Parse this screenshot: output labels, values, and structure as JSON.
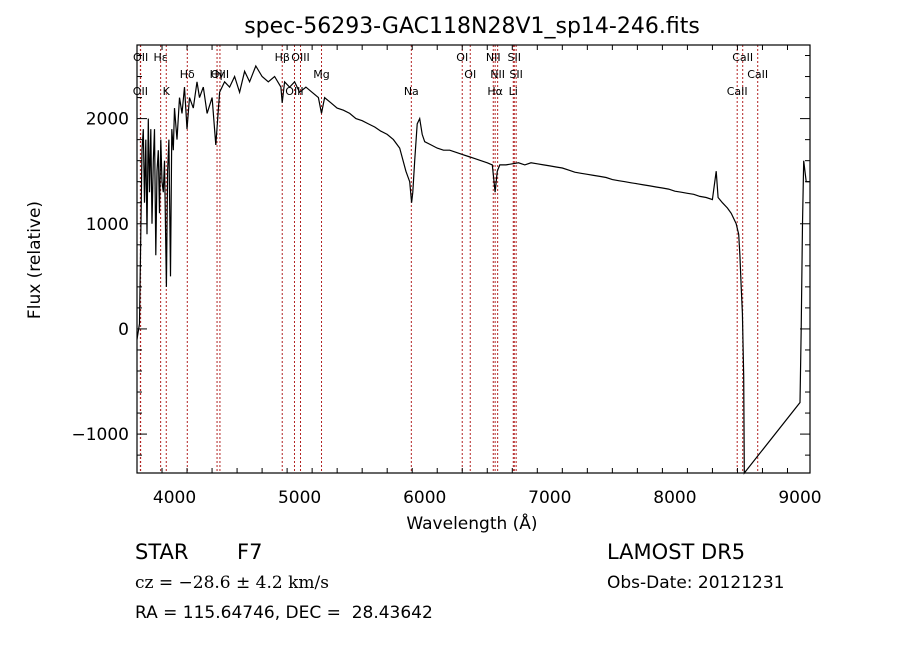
{
  "chart_data": {
    "type": "line",
    "title": "spec-56293-GAC118N28V1_sp14-246.fits",
    "xlabel": "Wavelength (Å)",
    "ylabel": "Flux (relative)",
    "xlim": [
      3700,
      9080
    ],
    "ylim": [
      -1370,
      2700
    ],
    "xticks": [
      4000,
      5000,
      6000,
      7000,
      8000,
      9000
    ],
    "yticks": [
      -1000,
      0,
      1000,
      2000
    ],
    "xtick_labels": [
      "4000",
      "5000",
      "6000",
      "7000",
      "8000",
      "9000"
    ],
    "ytick_labels": [
      "−1000",
      "0",
      "1000",
      "2000"
    ],
    "grid": false,
    "line_color": "#000000",
    "marker_color": "#b22222",
    "series": [
      {
        "points": [
          [
            3700,
            -100
          ],
          [
            3720,
            50
          ],
          [
            3740,
            1700
          ],
          [
            3750,
            1900
          ],
          [
            3760,
            1200
          ],
          [
            3770,
            1800
          ],
          [
            3780,
            900
          ],
          [
            3790,
            2000
          ],
          [
            3800,
            1300
          ],
          [
            3810,
            1900
          ],
          [
            3820,
            1000
          ],
          [
            3830,
            1600
          ],
          [
            3840,
            1900
          ],
          [
            3850,
            700
          ],
          [
            3860,
            1500
          ],
          [
            3870,
            1700
          ],
          [
            3880,
            1100
          ],
          [
            3890,
            1800
          ],
          [
            3900,
            1400
          ],
          [
            3910,
            1300
          ],
          [
            3920,
            1600
          ],
          [
            3935,
            400
          ],
          [
            3945,
            1500
          ],
          [
            3955,
            1800
          ],
          [
            3968,
            500
          ],
          [
            3978,
            1900
          ],
          [
            3990,
            1700
          ],
          [
            4000,
            2100
          ],
          [
            4020,
            1800
          ],
          [
            4040,
            2200
          ],
          [
            4060,
            2050
          ],
          [
            4080,
            2300
          ],
          [
            4100,
            1900
          ],
          [
            4120,
            2200
          ],
          [
            4150,
            2100
          ],
          [
            4180,
            2350
          ],
          [
            4200,
            2200
          ],
          [
            4230,
            2300
          ],
          [
            4260,
            2050
          ],
          [
            4300,
            2200
          ],
          [
            4330,
            1750
          ],
          [
            4345,
            2000
          ],
          [
            4360,
            2250
          ],
          [
            4400,
            2350
          ],
          [
            4440,
            2300
          ],
          [
            4480,
            2400
          ],
          [
            4520,
            2250
          ],
          [
            4560,
            2450
          ],
          [
            4600,
            2350
          ],
          [
            4650,
            2500
          ],
          [
            4700,
            2400
          ],
          [
            4750,
            2350
          ],
          [
            4800,
            2400
          ],
          [
            4850,
            2300
          ],
          [
            4861,
            2150
          ],
          [
            4880,
            2350
          ],
          [
            4920,
            2300
          ],
          [
            4960,
            2350
          ],
          [
            5000,
            2250
          ],
          [
            5050,
            2300
          ],
          [
            5100,
            2250
          ],
          [
            5150,
            2200
          ],
          [
            5175,
            2050
          ],
          [
            5200,
            2200
          ],
          [
            5250,
            2150
          ],
          [
            5300,
            2100
          ],
          [
            5350,
            2080
          ],
          [
            5400,
            2050
          ],
          [
            5450,
            2000
          ],
          [
            5500,
            1980
          ],
          [
            5550,
            1950
          ],
          [
            5600,
            1920
          ],
          [
            5650,
            1880
          ],
          [
            5700,
            1850
          ],
          [
            5750,
            1800
          ],
          [
            5800,
            1720
          ],
          [
            5850,
            1500
          ],
          [
            5880,
            1400
          ],
          [
            5895,
            1200
          ],
          [
            5905,
            1300
          ],
          [
            5920,
            1600
          ],
          [
            5940,
            1950
          ],
          [
            5960,
            2000
          ],
          [
            5980,
            1850
          ],
          [
            6000,
            1780
          ],
          [
            6050,
            1750
          ],
          [
            6100,
            1720
          ],
          [
            6150,
            1700
          ],
          [
            6200,
            1700
          ],
          [
            6250,
            1680
          ],
          [
            6300,
            1660
          ],
          [
            6350,
            1640
          ],
          [
            6400,
            1620
          ],
          [
            6450,
            1600
          ],
          [
            6500,
            1580
          ],
          [
            6540,
            1560
          ],
          [
            6563,
            1300
          ],
          [
            6580,
            1500
          ],
          [
            6600,
            1560
          ],
          [
            6650,
            1560
          ],
          [
            6700,
            1570
          ],
          [
            6750,
            1580
          ],
          [
            6800,
            1560
          ],
          [
            6850,
            1580
          ],
          [
            6900,
            1570
          ],
          [
            6950,
            1560
          ],
          [
            7000,
            1550
          ],
          [
            7050,
            1540
          ],
          [
            7100,
            1530
          ],
          [
            7150,
            1510
          ],
          [
            7200,
            1490
          ],
          [
            7250,
            1480
          ],
          [
            7300,
            1470
          ],
          [
            7350,
            1460
          ],
          [
            7400,
            1450
          ],
          [
            7450,
            1440
          ],
          [
            7500,
            1420
          ],
          [
            7550,
            1410
          ],
          [
            7600,
            1400
          ],
          [
            7650,
            1390
          ],
          [
            7700,
            1380
          ],
          [
            7750,
            1370
          ],
          [
            7800,
            1360
          ],
          [
            7850,
            1350
          ],
          [
            7900,
            1340
          ],
          [
            7950,
            1330
          ],
          [
            8000,
            1310
          ],
          [
            8050,
            1300
          ],
          [
            8100,
            1290
          ],
          [
            8150,
            1280
          ],
          [
            8200,
            1260
          ],
          [
            8250,
            1250
          ],
          [
            8300,
            1230
          ],
          [
            8330,
            1500
          ],
          [
            8345,
            1250
          ],
          [
            8380,
            1200
          ],
          [
            8420,
            1150
          ],
          [
            8450,
            1100
          ],
          [
            8470,
            1050
          ],
          [
            8490,
            1000
          ],
          [
            8510,
            900
          ],
          [
            8520,
            700
          ],
          [
            8530,
            400
          ],
          [
            8540,
            150
          ],
          [
            8550,
            -450
          ],
          [
            8555,
            -1370
          ],
          [
            9000,
            -700
          ],
          [
            9010,
            0
          ],
          [
            9020,
            1000
          ],
          [
            9030,
            1600
          ],
          [
            9050,
            1400
          ],
          [
            9080,
            1400
          ]
        ]
      }
    ],
    "line_markers": [
      {
        "label": "Hβ",
        "x": 4861
      },
      {
        "label": "Hδ",
        "x": 4102
      },
      {
        "label": "K",
        "x": 3934
      },
      {
        "label": "Hε",
        "x": 3889
      },
      {
        "label": "Hγ",
        "x": 4340
      },
      {
        "label": "OII",
        "x": 3727
      },
      {
        "label": "OII",
        "x": 3729
      },
      {
        "label": "OIII",
        "x": 4363
      },
      {
        "label": "OIII",
        "x": 4959
      },
      {
        "label": "OIII",
        "x": 5007
      },
      {
        "label": "Mg",
        "x": 5175
      },
      {
        "label": "Na",
        "x": 5893
      },
      {
        "label": "OI",
        "x": 6300
      },
      {
        "label": "OI",
        "x": 6364
      },
      {
        "label": "Hα",
        "x": 6563
      },
      {
        "label": "NII",
        "x": 6548
      },
      {
        "label": "NII",
        "x": 6583
      },
      {
        "label": "Li",
        "x": 6708
      },
      {
        "label": "SII",
        "x": 6716
      },
      {
        "label": "SII",
        "x": 6731
      },
      {
        "label": "CaII",
        "x": 8498
      },
      {
        "label": "CaII",
        "x": 8542
      },
      {
        "label": "CaII",
        "x": 8662
      }
    ]
  },
  "info": {
    "class_label": "STAR",
    "subclass": "F7",
    "cz": "cz = −28.6 ± 4.2 km/s",
    "coords": "RA = 115.64746, DEC =  28.43642",
    "survey": "LAMOST DR5",
    "obs_date": "Obs-Date: 20121231"
  }
}
